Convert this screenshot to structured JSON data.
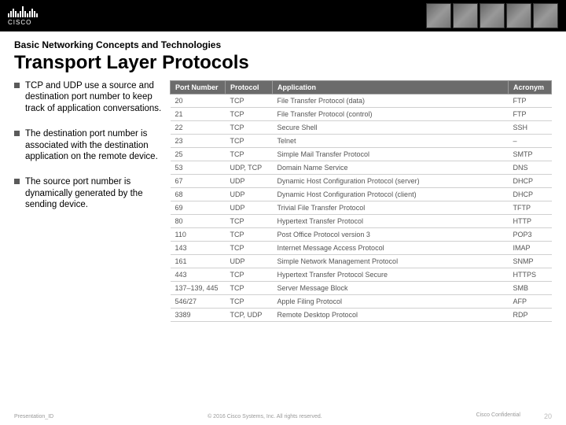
{
  "header": {
    "logo_text": "CISCO"
  },
  "subtitle": "Basic Networking Concepts and Technologies",
  "title": "Transport Layer Protocols",
  "bullets": [
    "TCP and UDP use a source and destination port number to keep track of application conversations.",
    "The destination port number is associated with the destination application on the remote device.",
    "The source port number is dynamically generated by the sending device."
  ],
  "table": {
    "columns": [
      "Port Number",
      "Protocol",
      "Application",
      "Acronym"
    ],
    "rows": [
      [
        "20",
        "TCP",
        "File Transfer Protocol (data)",
        "FTP"
      ],
      [
        "21",
        "TCP",
        "File Transfer Protocol (control)",
        "FTP"
      ],
      [
        "22",
        "TCP",
        "Secure Shell",
        "SSH"
      ],
      [
        "23",
        "TCP",
        "Telnet",
        "–"
      ],
      [
        "25",
        "TCP",
        "Simple Mail Transfer Protocol",
        "SMTP"
      ],
      [
        "53",
        "UDP, TCP",
        "Domain Name Service",
        "DNS"
      ],
      [
        "67",
        "UDP",
        "Dynamic Host Configuration Protocol (server)",
        "DHCP"
      ],
      [
        "68",
        "UDP",
        "Dynamic Host Configuration Protocol (client)",
        "DHCP"
      ],
      [
        "69",
        "UDP",
        "Trivial File Transfer Protocol",
        "TFTP"
      ],
      [
        "80",
        "TCP",
        "Hypertext Transfer Protocol",
        "HTTP"
      ],
      [
        "110",
        "TCP",
        "Post Office Protocol version 3",
        "POP3"
      ],
      [
        "143",
        "TCP",
        "Internet Message Access Protocol",
        "IMAP"
      ],
      [
        "161",
        "UDP",
        "Simple Network Management Protocol",
        "SNMP"
      ],
      [
        "443",
        "TCP",
        "Hypertext Transfer Protocol Secure",
        "HTTPS"
      ],
      [
        "137–139, 445",
        "TCP",
        "Server Message Block",
        "SMB"
      ],
      [
        "546/27",
        "TCP",
        "Apple Filing Protocol",
        "AFP"
      ],
      [
        "3389",
        "TCP, UDP",
        "Remote Desktop Protocol",
        "RDP"
      ]
    ]
  },
  "footer": {
    "left": "Presentation_ID",
    "center": "© 2016 Cisco Systems, Inc. All rights reserved.",
    "confidential": "Cisco Confidential",
    "page": "20"
  }
}
